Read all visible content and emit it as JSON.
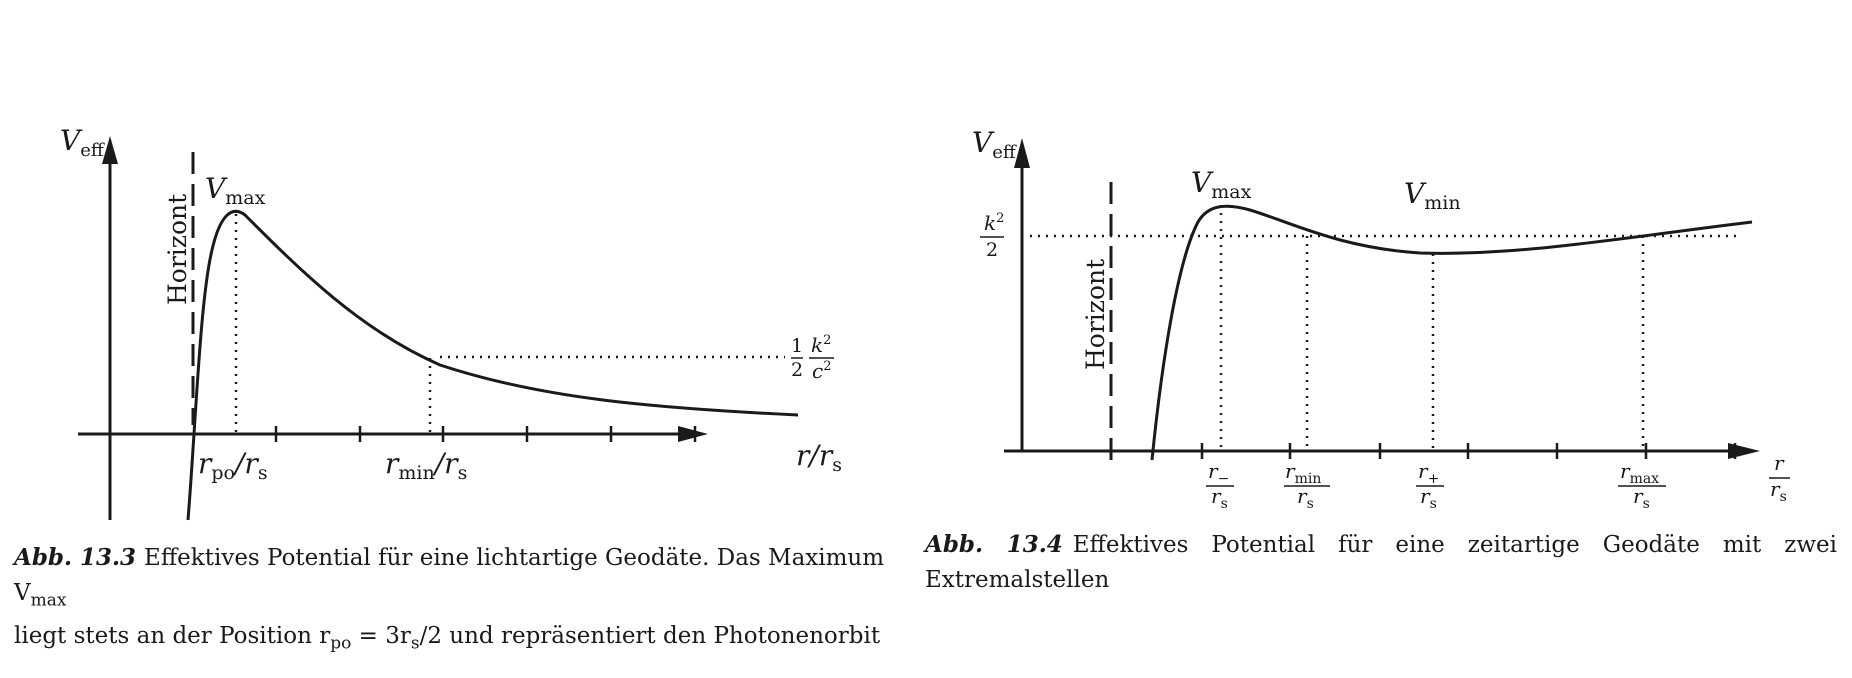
{
  "figures": [
    {
      "labels": {
        "y_axis": "V",
        "y_axis_sub": "eff",
        "x_axis": "r/r",
        "x_axis_sub": "s",
        "horizon": "Horizont",
        "vmax": "V",
        "vmax_sub": "max",
        "rpo": "r",
        "rpo_sub": "po",
        "rpo_tail": "/r",
        "rpo_tail_sub": "s",
        "rmin": "r",
        "rmin_sub": "min",
        "rmin_tail": "/r",
        "rmin_tail_sub": "s",
        "level_half": "1",
        "level_half_den": "2",
        "level_num": "k",
        "level_num_exp": "2",
        "level_den": "c",
        "level_den_exp": "2"
      },
      "caption": {
        "label": "Abb. 13.3",
        "line1": "Effektives Potential für eine lichtartige Geodäte. Das Maximum V",
        "line1_sub": "max",
        "line2_a": "liegt stets an der Position r",
        "line2_sub1": "po",
        "line2_b": " = 3r",
        "line2_sub2": "s",
        "line2_c": "/2 und repräsentiert den Photonenorbit"
      }
    },
    {
      "labels": {
        "y_axis": "V",
        "y_axis_sub": "eff",
        "horizon": "Horizont",
        "vmax": "V",
        "vmax_sub": "max",
        "vmin": "V",
        "vmin_sub": "min",
        "level_num": "k",
        "level_num_exp": "2",
        "level_den": "2",
        "tick_rminus": "r",
        "tick_rminus_sub": "−",
        "tick_rmin": "r",
        "tick_rmin_sub": "min",
        "tick_rplus": "r",
        "tick_rplus_sub": "+",
        "tick_rmax": "r",
        "tick_rmax_sub": "max",
        "tick_den": "r",
        "tick_den_sub": "s",
        "x_axis_num": "r",
        "x_axis_den": "r",
        "x_axis_den_sub": "s"
      },
      "caption": {
        "label": "Abb. 13.4",
        "line1": "Effektives Potential für eine zeitartige Geodäte mit zwei",
        "line2": "Extremalstellen"
      }
    }
  ]
}
